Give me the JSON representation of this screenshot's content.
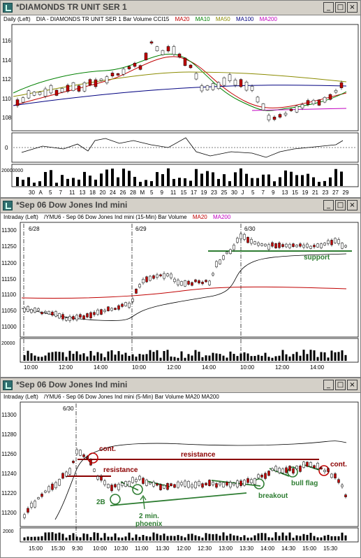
{
  "colors": {
    "ma20": "#c00000",
    "ma10": "#008000",
    "ma50": "#8b8b00",
    "ma100": "#000080",
    "ma200": "#c000c0",
    "annot_red": "#c00000",
    "annot_green": "#008000"
  },
  "window_controls": {
    "minimize": "_",
    "maximize": "□",
    "close": "×"
  },
  "win1": {
    "title": "*DIAMONDS TR UNIT SER 1",
    "info": {
      "period": "Daily  (Left)",
      "symbol": "DIA - DIAMONDS TR UNIT SER 1  Bar  Volume  CCI15",
      "ma20": "MA20",
      "ma10": "MA10",
      "ma50": "MA50",
      "ma100": "MA100",
      "ma200": "MA200"
    },
    "price_ticks": [
      "116",
      "114",
      "112",
      "110",
      "108"
    ],
    "cci_tick": "0",
    "volume_tick": "20000000",
    "date_ticks": [
      "30",
      "A",
      "5",
      "7",
      "11",
      "13",
      "18",
      "20",
      "24",
      "26",
      "28",
      "M",
      "5",
      "9",
      "11",
      "15",
      "17",
      "19",
      "23",
      "25",
      "30",
      "J",
      "5",
      "7",
      "9",
      "13",
      "15",
      "19",
      "21",
      "23",
      "27",
      "29"
    ]
  },
  "win2": {
    "title": "*Sep 06  Dow Jones Ind mini",
    "info": {
      "period": "Intraday  (Left)",
      "symbol": "/YMU6 - Sep 06  Dow Jones Ind mini (15-Min)  Bar  Volume",
      "ma20": "MA20",
      "ma200": "MA200"
    },
    "price_ticks": [
      "11300",
      "11250",
      "11200",
      "11150",
      "11100",
      "11050",
      "11000"
    ],
    "volume_tick": "20000",
    "session_labels": [
      "6/28",
      "6/29",
      "6/30"
    ],
    "time_ticks": [
      "10:00",
      "12:00",
      "14:00",
      "10:00",
      "12:00",
      "14:00",
      "10:00",
      "12:00",
      "14:00"
    ],
    "annotations": {
      "support": "support"
    }
  },
  "win3": {
    "title": "*Sep 06  Dow Jones Ind mini",
    "info": {
      "period": "Intraday  (Left)",
      "symbol": "/YMU6 - Sep 06  Dow Jones Ind mini (5-Min)  Bar  Volume  MA20  MA200"
    },
    "price_ticks": [
      "11300",
      "11280",
      "11260",
      "11240",
      "11220",
      "11200"
    ],
    "volume_tick": "2000",
    "session_label": "6/30",
    "time_ticks": [
      "15:00",
      "15:30",
      "9:30",
      "10:00",
      "10:30",
      "11:00",
      "11:30",
      "12:00",
      "12:30",
      "13:00",
      "13:30",
      "14:00",
      "14:30",
      "15:00",
      "15:30"
    ],
    "annotations": {
      "cont1": "cont.",
      "resistance_short": "resistance",
      "resistance_long": "resistance",
      "two_b": "2B",
      "phoenix_line1": "2 min.",
      "phoenix_line2": "phoenix",
      "breakout": "breakout",
      "bull_flag": "bull flag",
      "cont2": "cont."
    }
  }
}
